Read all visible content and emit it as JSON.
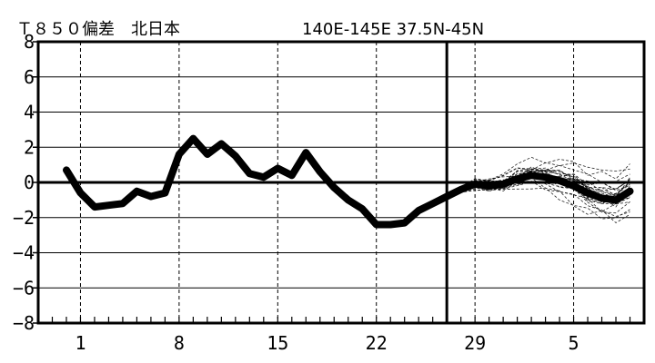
{
  "chart_data": {
    "type": "line",
    "title": "Ｔ８５０偏差　北日本",
    "subtitle": "140E-145E  37.5N-45N",
    "xlabel": "",
    "ylabel": "",
    "ylim": [
      -8,
      8
    ],
    "yticks": [
      -8,
      -6,
      -4,
      -2,
      0,
      2,
      4,
      6,
      8
    ],
    "yticks_labels": [
      "−8",
      "−6",
      "−4",
      "−2",
      "0",
      "2",
      "4",
      "6",
      "8"
    ],
    "x_tick_labels": [
      {
        "day_index": 1,
        "label": "1"
      },
      {
        "day_index": 8,
        "label": "8"
      },
      {
        "day_index": 15,
        "label": "15"
      },
      {
        "day_index": 22,
        "label": "22"
      },
      {
        "day_index": 29,
        "label": "29"
      },
      {
        "day_index": 36,
        "label": "5"
      }
    ],
    "x_range": [
      -2,
      41
    ],
    "forecast_start": 27,
    "grid": true,
    "series": [
      {
        "kind": "observed",
        "x": [
          0,
          1,
          2,
          3,
          4,
          5,
          6,
          7,
          8,
          9,
          10,
          11,
          12,
          13,
          14,
          15,
          16,
          17,
          18,
          19,
          20,
          21,
          22,
          23,
          24,
          25,
          26,
          27,
          28,
          29,
          30,
          31,
          32,
          33,
          34,
          35,
          36,
          37,
          38,
          39,
          40
        ],
        "values": [
          0.7,
          -0.6,
          -1.4,
          -1.3,
          -1.2,
          -0.5,
          -0.8,
          -0.6,
          1.6,
          2.5,
          1.6,
          2.2,
          1.5,
          0.5,
          0.3,
          0.8,
          0.4,
          1.7,
          0.6,
          -0.3,
          -1.0,
          -1.5,
          -2.4,
          -2.4,
          -2.3,
          -1.6,
          -1.2,
          -0.8,
          -0.4,
          -0.1,
          -0.2,
          -0.1,
          0.2,
          0.4,
          0.3,
          0.1,
          -0.2,
          -0.6,
          -0.9,
          -1.0,
          -0.5
        ]
      }
    ],
    "ensemble_colors": {
      "observed": "#000000",
      "members": "#000000"
    }
  }
}
